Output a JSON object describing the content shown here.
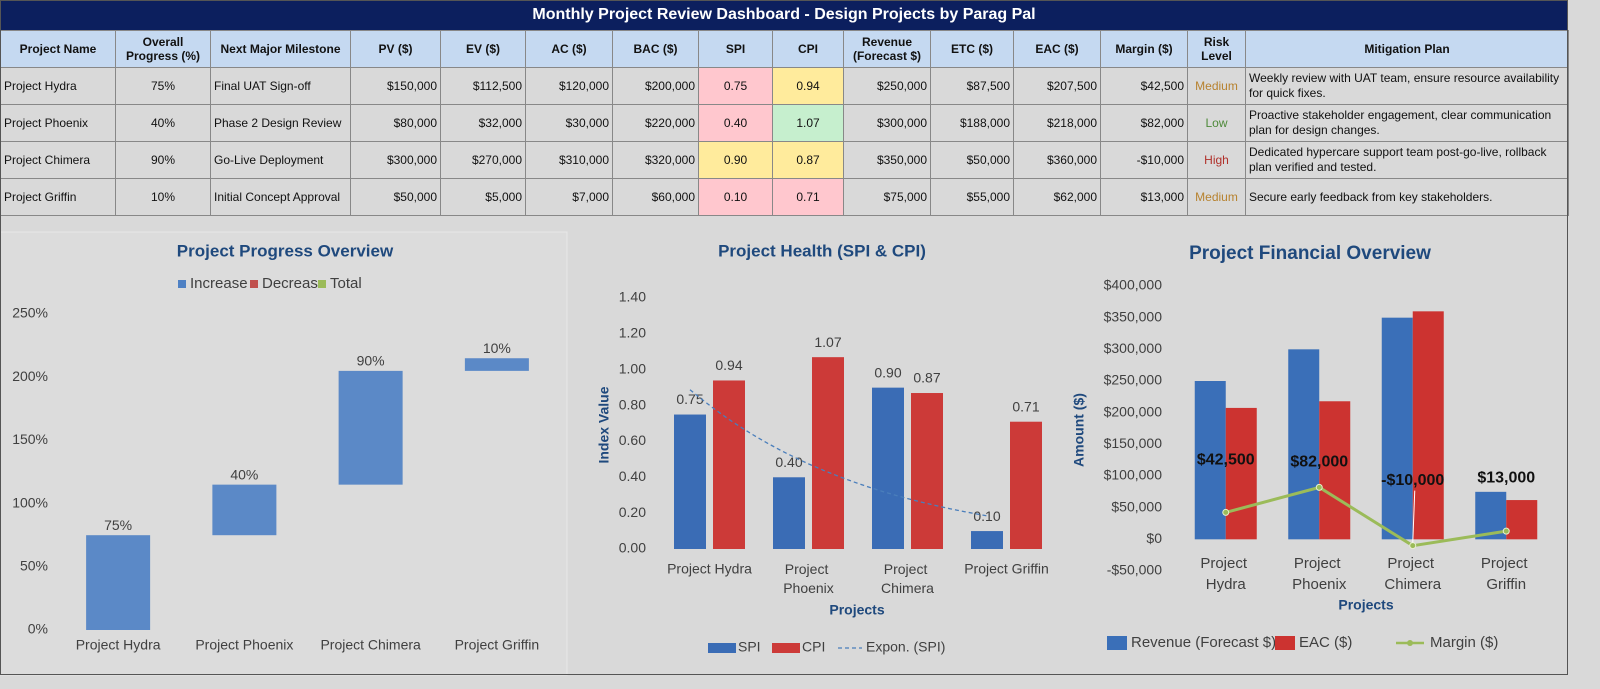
{
  "header": {
    "title": "Monthly Project Review Dashboard - Design Projects by Parag Pal"
  },
  "table": {
    "columns": [
      "Project Name",
      "Overall Progress (%)",
      "Next Major Milestone",
      "PV ($)",
      "EV ($)",
      "AC ($)",
      "BAC ($)",
      "SPI",
      "CPI",
      "Revenue (Forecast $)",
      "ETC ($)",
      "EAC ($)",
      "Margin ($)",
      "Risk Level",
      "Mitigation Plan"
    ],
    "rows": [
      [
        "Project Hydra",
        "75%",
        "Final UAT Sign-off",
        "$150,000",
        "$112,500",
        "$120,000",
        "$200,000",
        "0.75",
        "0.94",
        "$250,000",
        "$87,500",
        "$207,500",
        "$42,500",
        "Medium",
        "Weekly review with UAT team, ensure resource availability for quick fixes."
      ],
      [
        "Project Phoenix",
        "40%",
        "Phase 2 Design Review",
        "$80,000",
        "$32,000",
        "$30,000",
        "$220,000",
        "0.40",
        "1.07",
        "$300,000",
        "$188,000",
        "$218,000",
        "$82,000",
        "Low",
        "Proactive stakeholder engagement, clear communication plan for design changes."
      ],
      [
        "Project Chimera",
        "90%",
        "Go-Live Deployment",
        "$300,000",
        "$270,000",
        "$310,000",
        "$320,000",
        "0.90",
        "0.87",
        "$350,000",
        "$50,000",
        "$360,000",
        "-$10,000",
        "High",
        "Dedicated hypercare support team post-go-live, rollback plan verified and tested."
      ],
      [
        "Project Griffin",
        "10%",
        "Initial Concept Approval",
        "$50,000",
        "$5,000",
        "$7,000",
        "$60,000",
        "0.10",
        "0.71",
        "$75,000",
        "$55,000",
        "$62,000",
        "$13,000",
        "Medium",
        "Secure early feedback from key stakeholders."
      ]
    ],
    "spi_fill": [
      "#ffc7ce",
      "#ffc7ce",
      "#ffeb9c",
      "#ffc7ce"
    ],
    "cpi_fill": [
      "#ffeb9c",
      "#c6efce",
      "#ffeb9c",
      "#ffc7ce"
    ],
    "risk_color": [
      "#b7822f",
      "#4e8a3a",
      "#b0302a",
      "#b7822f"
    ]
  },
  "chart_data": [
    {
      "type": "waterfall",
      "title": "Project Progress Overview",
      "categories": [
        "Project Hydra",
        "Project Phoenix",
        "Project Chimera",
        "Project Griffin"
      ],
      "values": [
        75,
        40,
        90,
        10
      ],
      "value_labels": [
        "75%",
        "40%",
        "90%",
        "10%"
      ],
      "legend": [
        {
          "name": "Increase",
          "color": "#4f81c4"
        },
        {
          "name": "Decrease",
          "color": "#c0504d"
        },
        {
          "name": "Total",
          "color": "#9bbb59"
        }
      ],
      "ylim": [
        0,
        250
      ],
      "yticks": [
        {
          "value": 0,
          "label": "0%"
        },
        {
          "value": 50,
          "label": "50%"
        },
        {
          "value": 100,
          "label": "100%"
        },
        {
          "value": 150,
          "label": "150%"
        },
        {
          "value": 200,
          "label": "200%"
        },
        {
          "value": 250,
          "label": "250%"
        }
      ]
    },
    {
      "type": "bar",
      "title": "Project Health (SPI & CPI)",
      "x_label": "Projects",
      "y_label": "Index Value",
      "categories": [
        "Project Hydra",
        "Project Phoenix",
        "Project Chimera",
        "Project Griffin"
      ],
      "series": [
        {
          "name": "SPI",
          "color": "#3a6cb5",
          "values": [
            0.75,
            0.4,
            0.9,
            0.1
          ],
          "value_labels": [
            "0.75",
            "0.40",
            "0.90",
            "0.10"
          ]
        },
        {
          "name": "CPI",
          "color": "#cc3a38",
          "values": [
            0.94,
            1.07,
            0.87,
            0.71
          ],
          "value_labels": [
            "0.94",
            "1.07",
            "0.87",
            "0.71"
          ]
        }
      ],
      "trendline": {
        "name": "Expon. (SPI)",
        "fit": "exponential",
        "color": "#4a7ebb"
      },
      "ylim": [
        0,
        1.4
      ],
      "yticks": [
        {
          "value": 0,
          "label": "0.00"
        },
        {
          "value": 0.2,
          "label": "0.20"
        },
        {
          "value": 0.4,
          "label": "0.40"
        },
        {
          "value": 0.6,
          "label": "0.60"
        },
        {
          "value": 0.8,
          "label": "0.80"
        },
        {
          "value": 1.0,
          "label": "1.00"
        },
        {
          "value": 1.2,
          "label": "1.20"
        },
        {
          "value": 1.4,
          "label": "1.40"
        }
      ]
    },
    {
      "type": "combo",
      "title": "Project Financial Overview",
      "x_label": "Projects",
      "y_label": "Amount ($)",
      "categories": [
        "Project Hydra",
        "Project Phoenix",
        "Project Chimera",
        "Project Griffin"
      ],
      "series": [
        {
          "name": "Revenue (Forecast $)",
          "color": "#3a6fb8",
          "values": [
            250000,
            300000,
            350000,
            75000
          ]
        },
        {
          "name": "EAC ($)",
          "color": "#cc3330",
          "values": [
            207500,
            218000,
            360000,
            62000
          ]
        },
        {
          "name": "Margin ($)",
          "type": "line",
          "color": "#9bbb59",
          "values": [
            42500,
            82000,
            -10000,
            13000
          ],
          "value_labels": [
            "$42,500",
            "$82,000",
            "-$10,000",
            "$13,000"
          ]
        }
      ],
      "ylim": [
        -50000,
        400000
      ],
      "yticks": [
        {
          "value": -50000,
          "label": "-$50,000"
        },
        {
          "value": 0,
          "label": "$0"
        },
        {
          "value": 50000,
          "label": "$50,000"
        },
        {
          "value": 100000,
          "label": "$100,000"
        },
        {
          "value": 150000,
          "label": "$150,000"
        },
        {
          "value": 200000,
          "label": "$200,000"
        },
        {
          "value": 250000,
          "label": "$250,000"
        },
        {
          "value": 300000,
          "label": "$300,000"
        },
        {
          "value": 350000,
          "label": "$350,000"
        },
        {
          "value": 400000,
          "label": "$400,000"
        }
      ]
    }
  ]
}
